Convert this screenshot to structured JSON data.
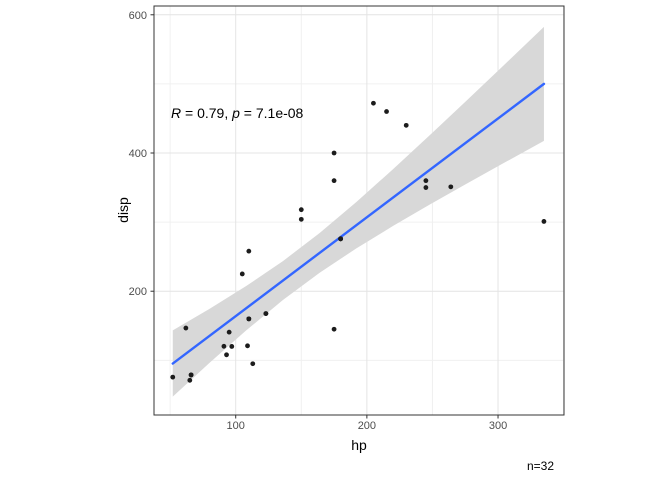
{
  "chart_data": {
    "type": "scatter",
    "title": "",
    "xlabel": "hp",
    "ylabel": "disp",
    "caption": "n=32",
    "stats": {
      "R": 0.79,
      "p": "7.1e-08",
      "n": 32
    },
    "annotation": {
      "full_text": "R = 0.79, p = 7.1e-08",
      "parts": [
        {
          "text": "R",
          "italic": true
        },
        {
          "text": " = 0.79, ",
          "italic": false
        },
        {
          "text": "p",
          "italic": true
        },
        {
          "text": " = 7.1e-08",
          "italic": false
        }
      ]
    },
    "xlim": [
      37.7,
      350.3
    ],
    "ylim": [
      20.9,
      612.7
    ],
    "x_ticks": [
      100,
      200,
      300
    ],
    "x_minor_ticks": [
      50,
      150,
      250,
      350
    ],
    "y_ticks": [
      200,
      400,
      600
    ],
    "y_minor_ticks": [
      100,
      300,
      500
    ],
    "grid": true,
    "legend": "none",
    "points": [
      [
        110,
        160
      ],
      [
        110,
        160
      ],
      [
        93,
        108
      ],
      [
        110,
        258
      ],
      [
        175,
        360
      ],
      [
        105,
        225
      ],
      [
        245,
        360
      ],
      [
        62,
        146.7
      ],
      [
        95,
        140.8
      ],
      [
        123,
        167.6
      ],
      [
        123,
        167.6
      ],
      [
        180,
        275.8
      ],
      [
        180,
        275.8
      ],
      [
        180,
        275.8
      ],
      [
        205,
        472
      ],
      [
        215,
        460
      ],
      [
        230,
        440
      ],
      [
        66,
        78.7
      ],
      [
        52,
        75.7
      ],
      [
        65,
        71.1
      ],
      [
        97,
        120.1
      ],
      [
        150,
        318
      ],
      [
        150,
        304
      ],
      [
        245,
        350
      ],
      [
        175,
        400
      ],
      [
        66,
        79
      ],
      [
        91,
        120.3
      ],
      [
        113,
        95.1
      ],
      [
        264,
        351
      ],
      [
        175,
        145
      ],
      [
        335,
        301
      ],
      [
        109,
        121
      ]
    ],
    "regression": {
      "intercept": 20.99,
      "slope": 1.4299,
      "x_range": [
        52,
        335
      ]
    },
    "ribbon": {
      "x": [
        52,
        80,
        108,
        136,
        164,
        192,
        220,
        248,
        276,
        304,
        335
      ],
      "lower": [
        47.4,
        96.3,
        143.3,
        187.3,
        226.8,
        262.0,
        294.5,
        325.4,
        355.5,
        385.1,
        417.5
      ],
      "upper": [
        143.3,
        174.5,
        207.5,
        243.6,
        284.2,
        329.1,
        376.7,
        425.8,
        475.8,
        526.3,
        582.5
      ]
    },
    "colors": {
      "line": "#3366FF",
      "ribbon": "#D8D8D8",
      "point": "#1C1C1C",
      "grid_major": "#E4E4E4",
      "grid_minor": "#F0F0F0",
      "panel_border": "#343434",
      "tick": "#333333",
      "tick_label": "#4D4D4D",
      "text": "#000000"
    }
  }
}
